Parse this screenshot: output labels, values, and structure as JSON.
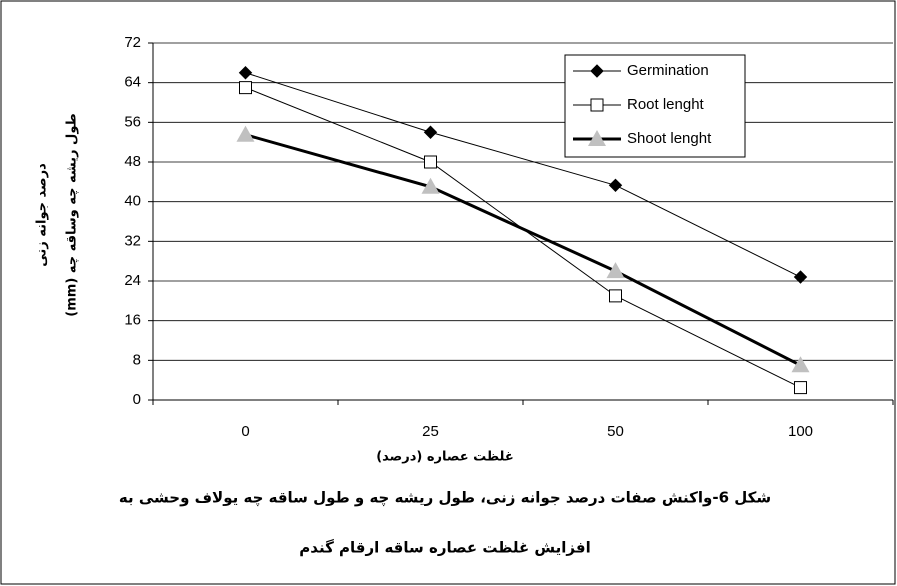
{
  "chart_data": {
    "type": "line",
    "categories": [
      "0",
      "25",
      "50",
      "100"
    ],
    "series": [
      {
        "name": "Germination",
        "color": "#000000",
        "marker": "diamond",
        "marker_color": "#000000",
        "line_width": 1,
        "values": [
          66,
          54,
          43.3,
          24.8
        ]
      },
      {
        "name": "Root lenght",
        "color": "#000000",
        "marker": "square",
        "marker_color": "#ffffff",
        "line_width": 1,
        "values": [
          63,
          48,
          21,
          2.5
        ]
      },
      {
        "name": "Shoot lenght",
        "color": "#000000",
        "marker": "triangle",
        "marker_color": "#c0c0c0",
        "line_width": 3,
        "values": [
          53.5,
          43,
          26,
          7
        ]
      }
    ],
    "ylim": [
      0,
      72
    ],
    "yticks": [
      0,
      8,
      16,
      24,
      32,
      40,
      48,
      56,
      64,
      72
    ],
    "grid": true,
    "legend": "top-right",
    "y_label": [
      "درصد جوانه زنی",
      "طول ریشه چه  وساقه چه  (mm)"
    ],
    "x_label": "غلظت عصاره (درصد)",
    "caption": [
      "شکل 6-واکنش صفات درصد جوانه زنی، طول ریشه چه و طول ساقه چه یولاف وحشی به",
      "افزایش غلظت عصاره ساقه ارقام گندم"
    ]
  }
}
